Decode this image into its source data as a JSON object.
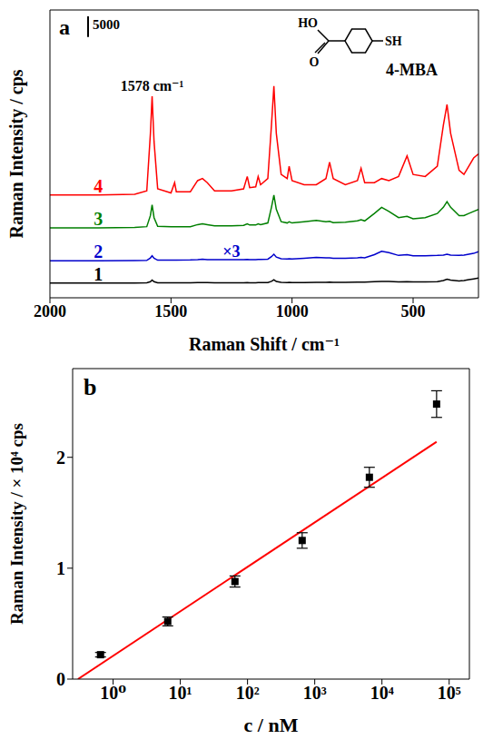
{
  "chart_data": [
    {
      "type": "line",
      "title": "a",
      "x_label": "Raman Shift / cm⁻¹",
      "y_label": "Raman Intensity / cps",
      "x": [
        2000,
        1800,
        1650,
        1600,
        1585,
        1578,
        1570,
        1555,
        1500,
        1485,
        1478,
        1420,
        1390,
        1370,
        1350,
        1320,
        1250,
        1200,
        1185,
        1175,
        1150,
        1140,
        1130,
        1100,
        1085,
        1075,
        1065,
        1045,
        1020,
        1012,
        1000,
        950,
        900,
        860,
        845,
        830,
        780,
        730,
        715,
        700,
        660,
        630,
        600,
        560,
        525,
        500,
        450,
        400,
        375,
        360,
        345,
        310,
        290,
        270,
        250,
        230
      ],
      "xlim": [
        2000,
        230
      ],
      "xticks": [
        2000,
        1500,
        1000,
        500
      ],
      "ylim": [
        0,
        70000
      ],
      "tick_labels": "x",
      "scale_bar": 5000,
      "annotations": [
        {
          "text": "1578 cm⁻¹",
          "x": 1578
        }
      ],
      "molecule": {
        "labels": [
          "HO",
          "O",
          "SH"
        ],
        "name": "4-MBA"
      },
      "series": [
        {
          "name": "1",
          "color": "#000000",
          "values": [
            3600,
            3600,
            3600,
            3650,
            3900,
            4300,
            3900,
            3650,
            3650,
            3650,
            3650,
            3650,
            3700,
            3700,
            3700,
            3650,
            3650,
            3650,
            3700,
            3650,
            3650,
            3700,
            3700,
            3700,
            4000,
            4400,
            3950,
            3750,
            3700,
            3750,
            3700,
            3700,
            3750,
            3750,
            3800,
            3750,
            3750,
            3800,
            3800,
            3800,
            3900,
            4000,
            3950,
            3850,
            3900,
            3850,
            3850,
            3900,
            4200,
            4500,
            4300,
            4100,
            4200,
            4400,
            4600,
            4800
          ]
        },
        {
          "name": "2",
          "color": "#0000CC",
          "note": "×3",
          "values": [
            9000,
            9000,
            9050,
            9100,
            9700,
            10200,
            9600,
            9150,
            9150,
            9150,
            9150,
            9200,
            9300,
            9400,
            9300,
            9250,
            9250,
            9300,
            9350,
            9300,
            9300,
            9350,
            9350,
            9400,
            10000,
            10600,
            9900,
            9500,
            9450,
            9500,
            9450,
            9600,
            9800,
            9700,
            9700,
            9600,
            9600,
            9700,
            9800,
            9700,
            10500,
            11300,
            11000,
            10300,
            10500,
            10200,
            10200,
            10300,
            10400,
            10600,
            10400,
            10300,
            10400,
            10600,
            10800,
            11200
          ]
        },
        {
          "name": "3",
          "color": "#007F00",
          "values": [
            17000,
            17000,
            17100,
            17300,
            20000,
            22600,
            19500,
            17400,
            17300,
            17300,
            17300,
            17300,
            17800,
            18000,
            17800,
            17500,
            17500,
            17600,
            18000,
            17700,
            17700,
            18000,
            17800,
            18200,
            22000,
            25000,
            21500,
            18500,
            18200,
            18500,
            18200,
            18500,
            18800,
            18500,
            18600,
            18300,
            18400,
            18700,
            19000,
            18700,
            20500,
            22000,
            21000,
            19500,
            19800,
            19200,
            19500,
            20500,
            22000,
            23400,
            22000,
            20000,
            20000,
            20500,
            21000,
            21500
          ]
        },
        {
          "name": "4",
          "color": "#FF0000",
          "values": [
            25000,
            25000,
            25200,
            26000,
            40000,
            49000,
            38000,
            26500,
            25500,
            28000,
            25800,
            25800,
            28500,
            29000,
            28000,
            26000,
            26000,
            26500,
            29500,
            26800,
            27000,
            29500,
            27500,
            29000,
            42000,
            51500,
            40000,
            30000,
            29000,
            32000,
            28500,
            27500,
            27500,
            29000,
            33000,
            29000,
            27500,
            28500,
            31500,
            28000,
            28000,
            29000,
            28500,
            29500,
            34500,
            30000,
            29500,
            32000,
            42000,
            47000,
            40000,
            31000,
            30000,
            32000,
            34000,
            35000
          ]
        }
      ]
    },
    {
      "type": "scatter",
      "title": "b",
      "x_label": "c /  nM",
      "y_label": "Raman Intensity / × 10⁴ cps",
      "log": "x",
      "x": [
        0.65,
        6.5,
        65,
        650,
        6500,
        65000
      ],
      "values": [
        0.22,
        0.52,
        0.88,
        1.25,
        1.82,
        2.48
      ],
      "errors": [
        0.02,
        0.04,
        0.05,
        0.07,
        0.09,
        0.12
      ],
      "color": "#000000",
      "marker": "square",
      "xlim": [
        0.25,
        200000
      ],
      "xticks": [
        {
          "value": 1,
          "label": "10⁰"
        },
        {
          "value": 10,
          "label": "10¹"
        },
        {
          "value": 100,
          "label": "10²"
        },
        {
          "value": 1000,
          "label": "10³"
        },
        {
          "value": 10000,
          "label": "10⁴"
        },
        {
          "value": 100000,
          "label": "10⁵"
        }
      ],
      "ylim": [
        0,
        2.8
      ],
      "yticks": [
        0,
        1,
        2
      ],
      "fit": {
        "x": [
          0.3,
          65000
        ],
        "values": [
          0,
          2.14
        ],
        "color": "#FF0000"
      }
    }
  ]
}
